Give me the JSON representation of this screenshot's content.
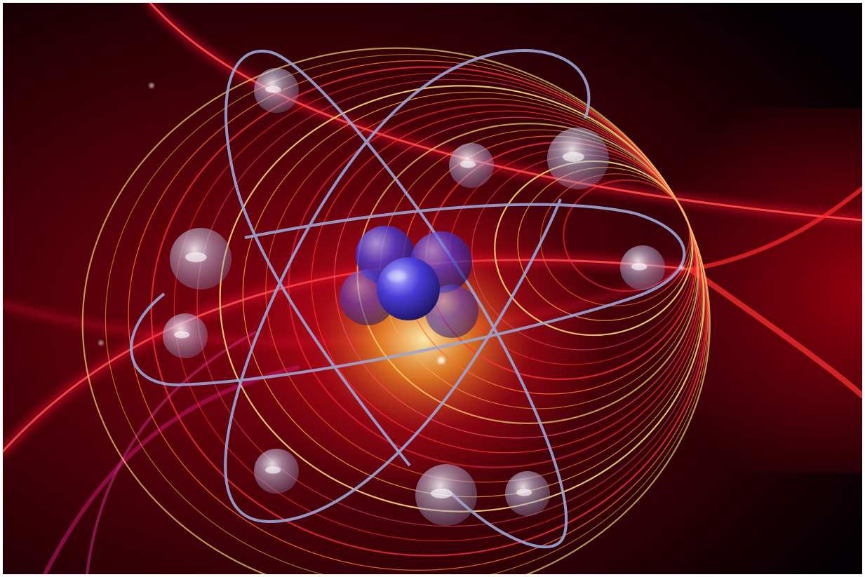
{
  "image": {
    "subject": "atom-illustration",
    "colors": {
      "background": "#050003",
      "glow_red": "#e0102a",
      "glow_orange": "#ff8a1a",
      "glow_yellow": "#ffe27a",
      "orbit": "#9aa6d6",
      "nucleus": "#4a3bd6",
      "electron": "#c9c8e6"
    }
  }
}
